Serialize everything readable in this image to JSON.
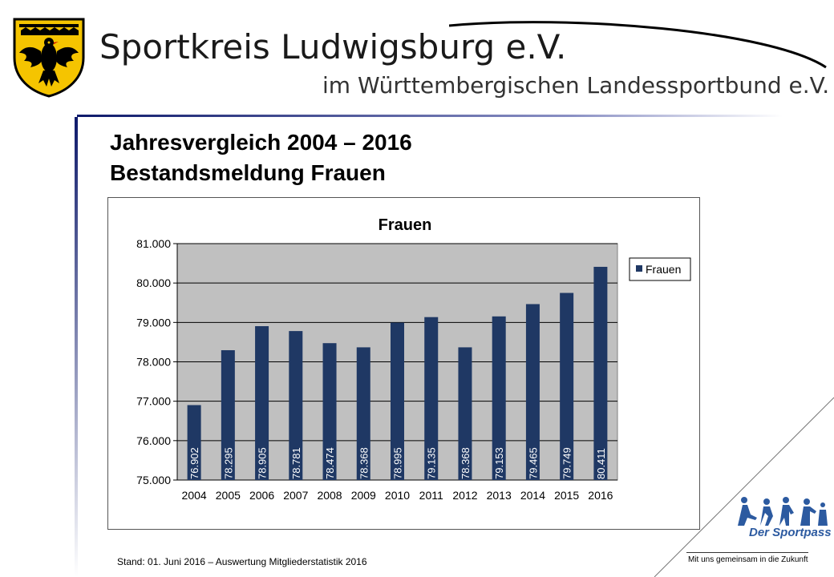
{
  "header": {
    "org_name": "Sportkreis Ludwigsburg e.V.",
    "org_subtitle": "im Württembergischen Landessportbund e.V."
  },
  "slide": {
    "title_line1": "Jahresvergleich 2004 – 2016",
    "title_line2": "Bestandsmeldung Frauen"
  },
  "footer": {
    "note": "Stand: 01. Juni 2016 – Auswertung Mitgliederstatistik 2016",
    "tagline": "Mit uns gemeinsam in die Zukunft",
    "logo_text": "Der Sportpass"
  },
  "colors": {
    "bar": "#1f3864",
    "plot_bg": "#c0c0c0",
    "header_blue": "#0e1a6b",
    "crest_gold": "#f5c400"
  },
  "chart_data": {
    "type": "bar",
    "title": "Frauen",
    "categories": [
      "2004",
      "2005",
      "2006",
      "2007",
      "2008",
      "2009",
      "2010",
      "2011",
      "2012",
      "2013",
      "2014",
      "2015",
      "2016"
    ],
    "series": [
      {
        "name": "Frauen",
        "values": [
          76902,
          78295,
          78905,
          78781,
          78474,
          78368,
          78995,
          79135,
          78368,
          79153,
          79465,
          79749,
          80411
        ]
      }
    ],
    "data_labels": [
      "76.902",
      "78.295",
      "78.905",
      "78.781",
      "78.474",
      "78.368",
      "78.995",
      "79.135",
      "78.368",
      "79.153",
      "79.465",
      "79.749",
      "80.411"
    ],
    "ylim": [
      75000,
      81000
    ],
    "yticks": [
      75000,
      76000,
      77000,
      78000,
      79000,
      80000,
      81000
    ],
    "ytick_labels": [
      "75.000",
      "76.000",
      "77.000",
      "78.000",
      "79.000",
      "80.000",
      "81.000"
    ],
    "grid": true,
    "legend_position": "right"
  }
}
